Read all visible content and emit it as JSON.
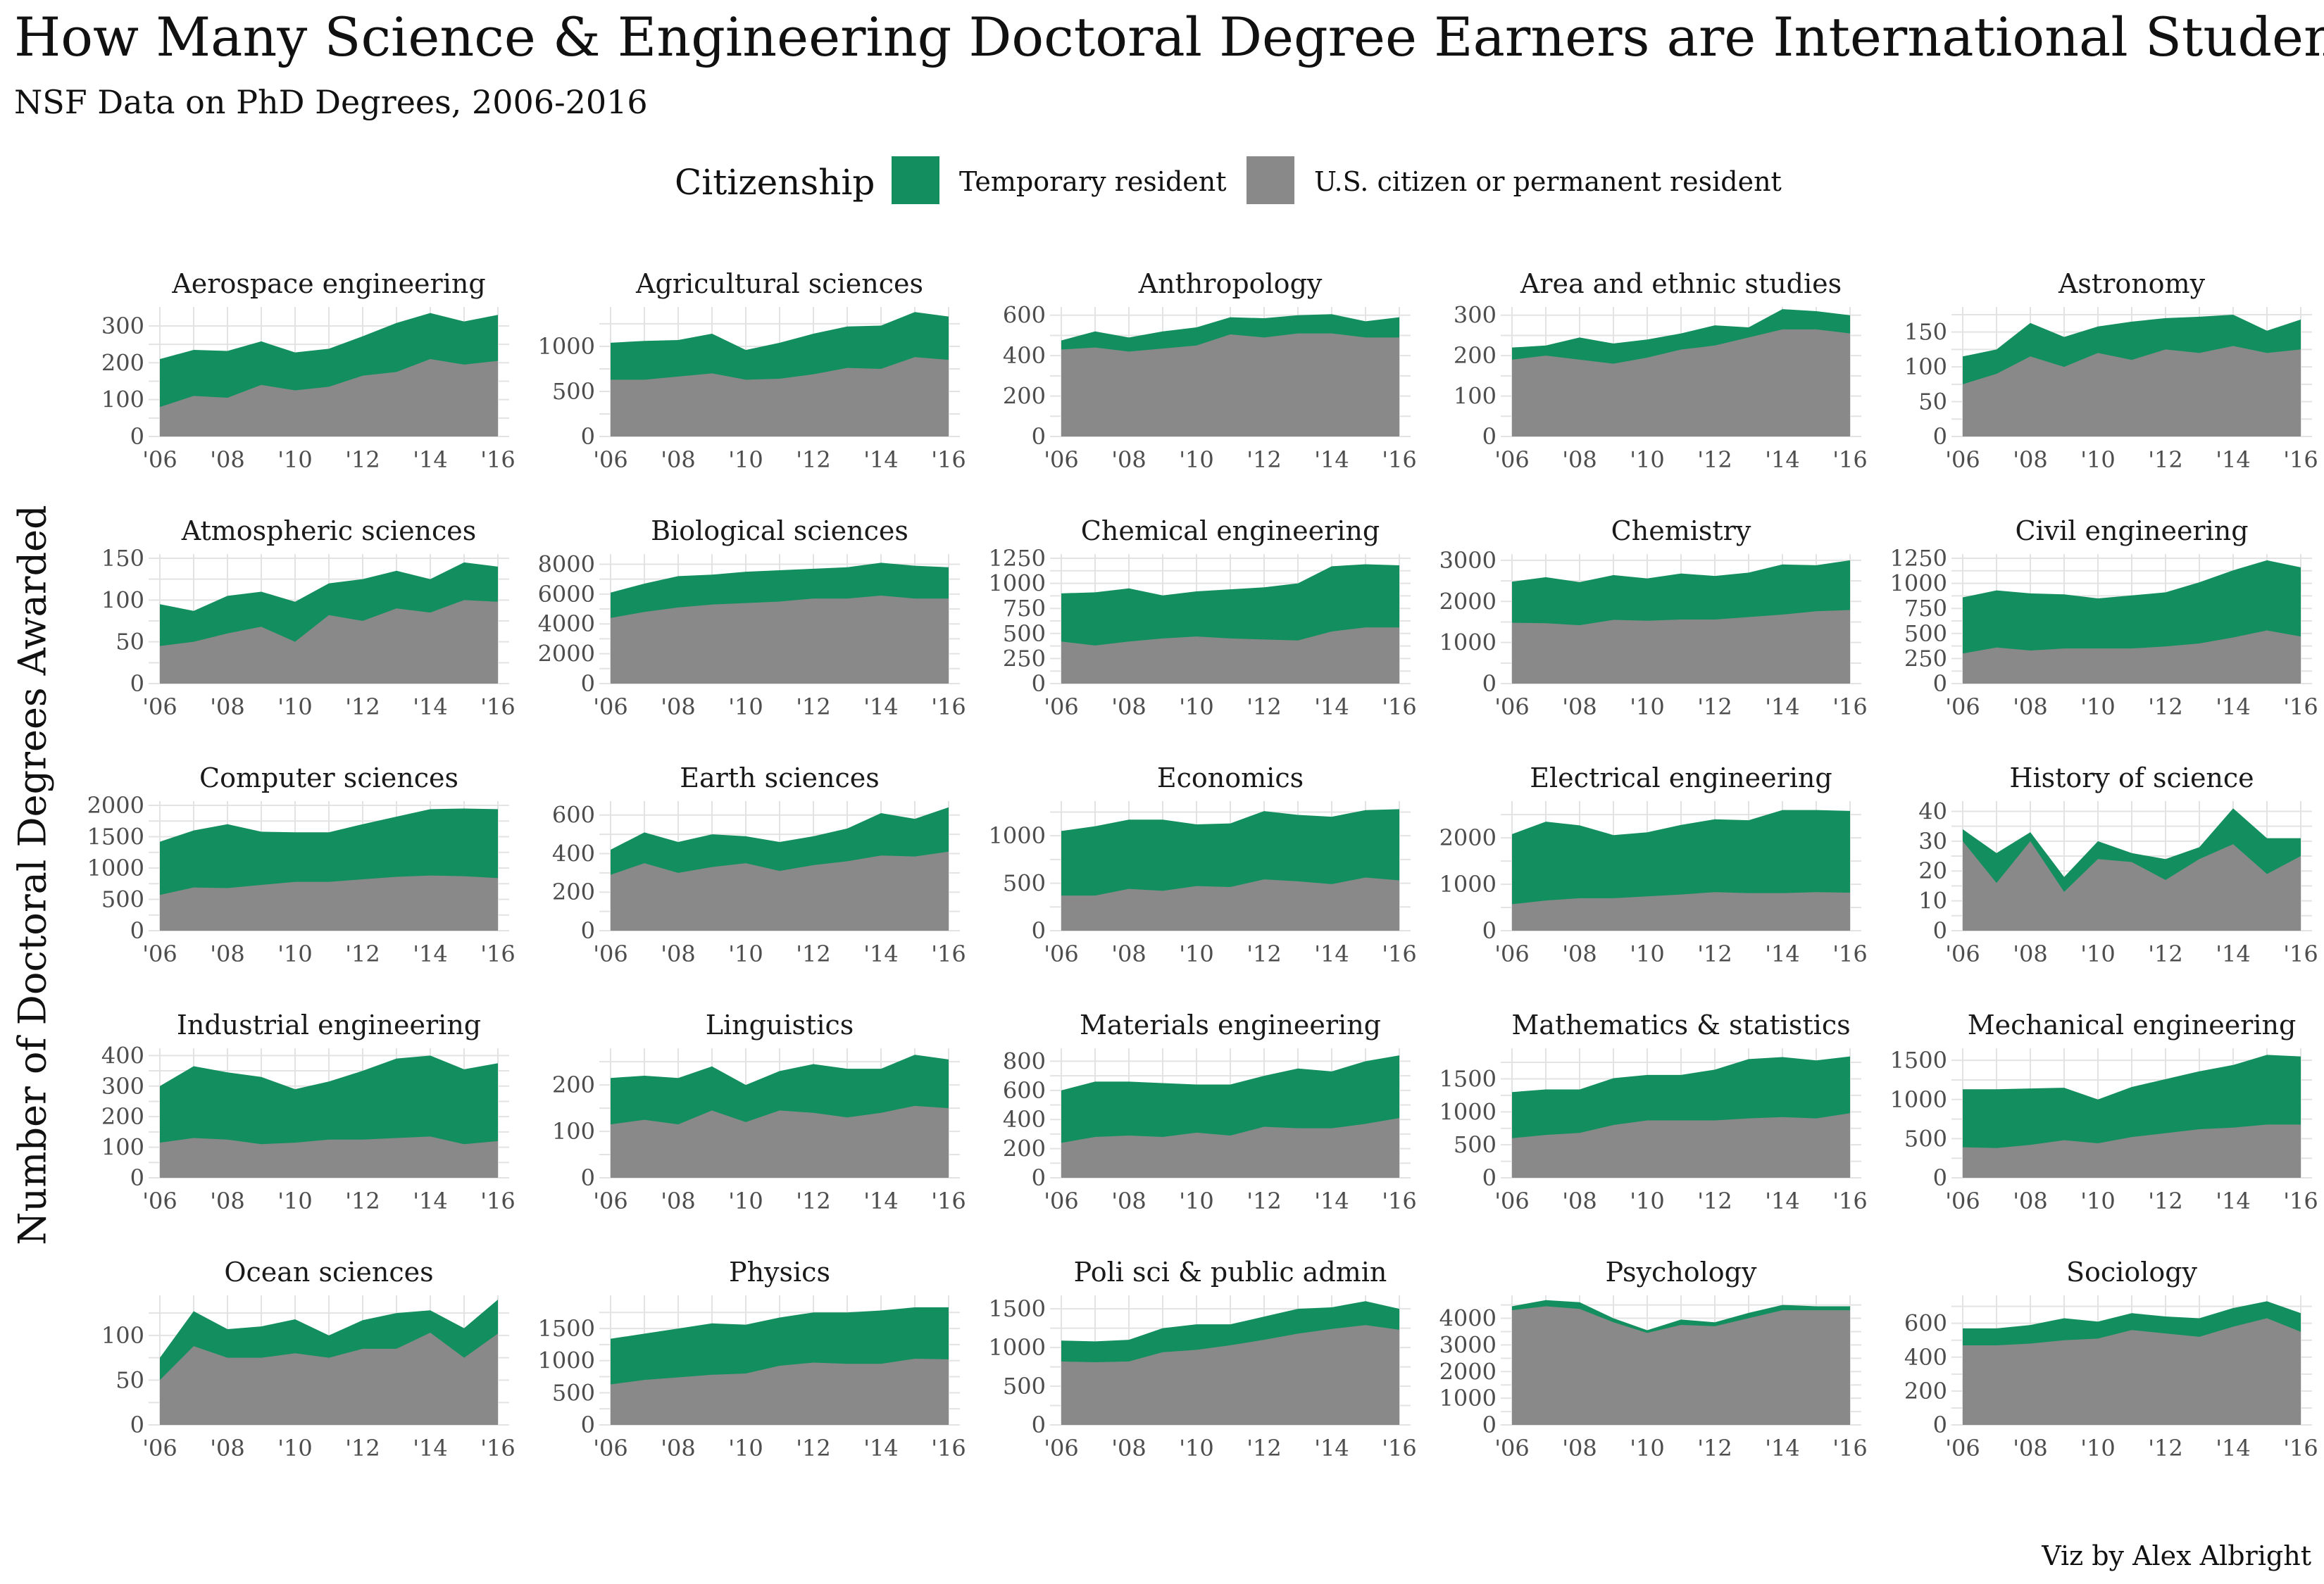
{
  "title": "How Many Science & Engineering Doctoral Degree Earners are International Students?",
  "subtitle": "NSF Data on PhD Degrees, 2006-2016",
  "y_axis_label": "Number of Doctoral Degrees Awarded",
  "caption": "Viz by Alex Albright",
  "legend": {
    "title": "Citizenship",
    "items": [
      {
        "label": "Temporary resident",
        "color": "#138f5f"
      },
      {
        "label": "U.S. citizen or permanent resident",
        "color": "#898989"
      }
    ]
  },
  "colors": {
    "temporary": "#138f5f",
    "citizen": "#898989",
    "grid": "#e3e3e3"
  },
  "chart_data": {
    "type": "area",
    "stacked": true,
    "years": [
      2006,
      2007,
      2008,
      2009,
      2010,
      2011,
      2012,
      2013,
      2014,
      2015,
      2016
    ],
    "x_tick_labels": [
      "'06",
      "'08",
      "'10",
      "'12",
      "'14",
      "'16"
    ],
    "panels": [
      {
        "name": "Aerospace engineering",
        "ymax": 340,
        "ticks": [
          0,
          100,
          200,
          300
        ],
        "citizen": [
          80,
          110,
          105,
          140,
          125,
          135,
          165,
          175,
          210,
          195,
          205
        ],
        "total": [
          210,
          235,
          232,
          258,
          228,
          238,
          272,
          308,
          335,
          312,
          330
        ]
      },
      {
        "name": "Agricultural sciences",
        "ymax": 1390,
        "ticks": [
          0,
          500,
          1000
        ],
        "citizen": [
          630,
          630,
          665,
          700,
          630,
          640,
          690,
          760,
          750,
          880,
          850
        ],
        "total": [
          1040,
          1060,
          1070,
          1140,
          960,
          1040,
          1140,
          1220,
          1230,
          1380,
          1330
        ]
      },
      {
        "name": "Anthropology",
        "ymax": 620,
        "ticks": [
          0,
          200,
          400,
          600
        ],
        "citizen": [
          430,
          440,
          420,
          435,
          450,
          505,
          490,
          510,
          510,
          490,
          490
        ],
        "total": [
          475,
          520,
          490,
          520,
          540,
          590,
          585,
          600,
          605,
          570,
          590
        ]
      },
      {
        "name": "Area and ethnic studies",
        "ymax": 310,
        "ticks": [
          0,
          100,
          200,
          300
        ],
        "citizen": [
          190,
          200,
          190,
          180,
          195,
          215,
          225,
          245,
          265,
          265,
          255
        ],
        "total": [
          220,
          225,
          245,
          230,
          240,
          255,
          275,
          270,
          315,
          310,
          300
        ]
      },
      {
        "name": "Astronomy",
        "ymax": 180,
        "ticks": [
          0,
          50,
          100,
          150
        ],
        "citizen": [
          75,
          90,
          115,
          100,
          120,
          110,
          125,
          120,
          130,
          120,
          125
        ],
        "total": [
          115,
          125,
          163,
          143,
          158,
          165,
          170,
          172,
          175,
          152,
          168
        ]
      },
      {
        "name": "Atmospheric sciences",
        "ymax": 150,
        "ticks": [
          0,
          50,
          100,
          150
        ],
        "citizen": [
          45,
          50,
          60,
          68,
          50,
          82,
          75,
          90,
          85,
          100,
          98
        ],
        "total": [
          95,
          87,
          105,
          110,
          98,
          120,
          125,
          135,
          125,
          145,
          140
        ]
      },
      {
        "name": "Biological sciences",
        "ymax": 8400,
        "ticks": [
          0,
          2000,
          4000,
          6000,
          8000
        ],
        "citizen": [
          4400,
          4800,
          5100,
          5300,
          5400,
          5500,
          5700,
          5700,
          5900,
          5700,
          5700
        ],
        "total": [
          6100,
          6700,
          7200,
          7300,
          7500,
          7600,
          7700,
          7800,
          8100,
          7900,
          7800
        ]
      },
      {
        "name": "Chemical engineering",
        "ymax": 1250,
        "ticks": [
          0,
          250,
          500,
          750,
          1000,
          1250
        ],
        "citizen": [
          420,
          380,
          420,
          450,
          470,
          450,
          440,
          430,
          520,
          560,
          560
        ],
        "total": [
          900,
          910,
          950,
          880,
          920,
          940,
          960,
          1000,
          1170,
          1190,
          1180
        ]
      },
      {
        "name": "Chemistry",
        "ymax": 3050,
        "ticks": [
          0,
          1000,
          2000,
          3000
        ],
        "citizen": [
          1480,
          1470,
          1420,
          1550,
          1530,
          1560,
          1560,
          1620,
          1680,
          1760,
          1790
        ],
        "total": [
          2480,
          2590,
          2470,
          2640,
          2560,
          2680,
          2620,
          2700,
          2900,
          2880,
          3000
        ]
      },
      {
        "name": "Civil engineering",
        "ymax": 1250,
        "ticks": [
          0,
          250,
          500,
          750,
          1000,
          1250
        ],
        "citizen": [
          300,
          360,
          330,
          350,
          350,
          350,
          370,
          400,
          460,
          530,
          470
        ],
        "total": [
          860,
          930,
          900,
          890,
          850,
          880,
          910,
          1010,
          1130,
          1230,
          1160
        ]
      },
      {
        "name": "Computer sciences",
        "ymax": 2000,
        "ticks": [
          0,
          500,
          1000,
          1500,
          2000
        ],
        "citizen": [
          570,
          690,
          680,
          730,
          780,
          780,
          820,
          860,
          880,
          870,
          840
        ],
        "total": [
          1420,
          1600,
          1700,
          1580,
          1570,
          1570,
          1700,
          1820,
          1940,
          1950,
          1940
        ]
      },
      {
        "name": "Earth sciences",
        "ymax": 650,
        "ticks": [
          0,
          200,
          400,
          600
        ],
        "citizen": [
          290,
          350,
          300,
          330,
          350,
          310,
          340,
          360,
          390,
          385,
          410
        ],
        "total": [
          420,
          510,
          460,
          500,
          490,
          460,
          490,
          530,
          610,
          580,
          640
        ]
      },
      {
        "name": "Economics",
        "ymax": 1320,
        "ticks": [
          0,
          500,
          1000
        ],
        "citizen": [
          370,
          370,
          440,
          420,
          470,
          460,
          540,
          520,
          490,
          560,
          530
        ],
        "total": [
          1050,
          1100,
          1170,
          1170,
          1120,
          1130,
          1260,
          1220,
          1200,
          1270,
          1280
        ]
      },
      {
        "name": "Electrical engineering",
        "ymax": 2700,
        "ticks": [
          0,
          1000,
          2000
        ],
        "citizen": [
          570,
          650,
          700,
          700,
          740,
          780,
          830,
          810,
          810,
          830,
          820
        ],
        "total": [
          2080,
          2350,
          2270,
          2060,
          2120,
          2280,
          2400,
          2380,
          2600,
          2600,
          2580
        ]
      },
      {
        "name": "History of science",
        "ymax": 42,
        "ticks": [
          0,
          10,
          20,
          30,
          40
        ],
        "citizen": [
          30,
          16,
          30,
          13,
          24,
          23,
          17,
          24,
          29,
          19,
          25
        ],
        "total": [
          34,
          26,
          33,
          18,
          30,
          26,
          24,
          28,
          41,
          31,
          31
        ]
      },
      {
        "name": "Industrial engineering",
        "ymax": 410,
        "ticks": [
          0,
          100,
          200,
          300,
          400
        ],
        "citizen": [
          115,
          130,
          125,
          110,
          115,
          125,
          125,
          130,
          135,
          110,
          120
        ],
        "total": [
          300,
          365,
          345,
          330,
          290,
          315,
          350,
          390,
          400,
          355,
          375
        ]
      },
      {
        "name": "Linguistics",
        "ymax": 270,
        "ticks": [
          0,
          100,
          200
        ],
        "citizen": [
          115,
          125,
          115,
          145,
          120,
          145,
          140,
          130,
          140,
          155,
          150
        ],
        "total": [
          215,
          220,
          215,
          240,
          200,
          230,
          245,
          235,
          235,
          265,
          255
        ]
      },
      {
        "name": "Materials engineering",
        "ymax": 860,
        "ticks": [
          0,
          200,
          400,
          600,
          800
        ],
        "citizen": [
          240,
          280,
          290,
          280,
          310,
          290,
          350,
          340,
          340,
          370,
          410
        ],
        "total": [
          600,
          660,
          660,
          650,
          640,
          640,
          700,
          750,
          730,
          800,
          840
        ]
      },
      {
        "name": "Mathematics & statistics",
        "ymax": 1900,
        "ticks": [
          0,
          500,
          1000,
          1500
        ],
        "citizen": [
          600,
          650,
          680,
          800,
          870,
          870,
          870,
          900,
          920,
          900,
          980
        ],
        "total": [
          1300,
          1340,
          1340,
          1510,
          1560,
          1560,
          1640,
          1800,
          1830,
          1780,
          1840
        ]
      },
      {
        "name": "Mechanical engineering",
        "ymax": 1600,
        "ticks": [
          0,
          500,
          1000,
          1500
        ],
        "citizen": [
          390,
          380,
          420,
          480,
          440,
          520,
          570,
          620,
          640,
          680,
          680
        ],
        "total": [
          1130,
          1130,
          1140,
          1150,
          1000,
          1160,
          1260,
          1360,
          1440,
          1570,
          1550
        ]
      },
      {
        "name": "Ocean sciences",
        "ymax": 140,
        "ticks": [
          0,
          50,
          100
        ],
        "citizen": [
          50,
          88,
          75,
          75,
          80,
          75,
          85,
          85,
          103,
          75,
          102
        ],
        "total": [
          75,
          127,
          107,
          110,
          118,
          100,
          117,
          125,
          128,
          108,
          140
        ]
      },
      {
        "name": "Physics",
        "ymax": 1950,
        "ticks": [
          0,
          500,
          1000,
          1500
        ],
        "citizen": [
          630,
          700,
          740,
          780,
          800,
          920,
          970,
          950,
          950,
          1030,
          1020
        ],
        "total": [
          1340,
          1420,
          1500,
          1580,
          1560,
          1670,
          1750,
          1750,
          1780,
          1830,
          1830
        ]
      },
      {
        "name": "Poli sci & public admin",
        "ymax": 1620,
        "ticks": [
          0,
          500,
          1000,
          1500
        ],
        "citizen": [
          820,
          810,
          820,
          940,
          970,
          1030,
          1100,
          1180,
          1240,
          1290,
          1230
        ],
        "total": [
          1090,
          1080,
          1100,
          1250,
          1300,
          1300,
          1400,
          1500,
          1520,
          1600,
          1500
        ]
      },
      {
        "name": "Psychology",
        "ymax": 4700,
        "ticks": [
          0,
          1000,
          2000,
          3000,
          4000
        ],
        "citizen": [
          4300,
          4450,
          4350,
          3850,
          3450,
          3750,
          3700,
          4000,
          4300,
          4300,
          4300
        ],
        "total": [
          4450,
          4680,
          4600,
          4000,
          3550,
          3950,
          3850,
          4200,
          4500,
          4450,
          4450
        ]
      },
      {
        "name": "Sociology",
        "ymax": 740,
        "ticks": [
          0,
          200,
          400,
          600
        ],
        "citizen": [
          470,
          470,
          480,
          500,
          510,
          560,
          540,
          520,
          580,
          630,
          550
        ],
        "total": [
          570,
          570,
          590,
          630,
          610,
          660,
          640,
          630,
          690,
          730,
          660
        ]
      }
    ]
  }
}
